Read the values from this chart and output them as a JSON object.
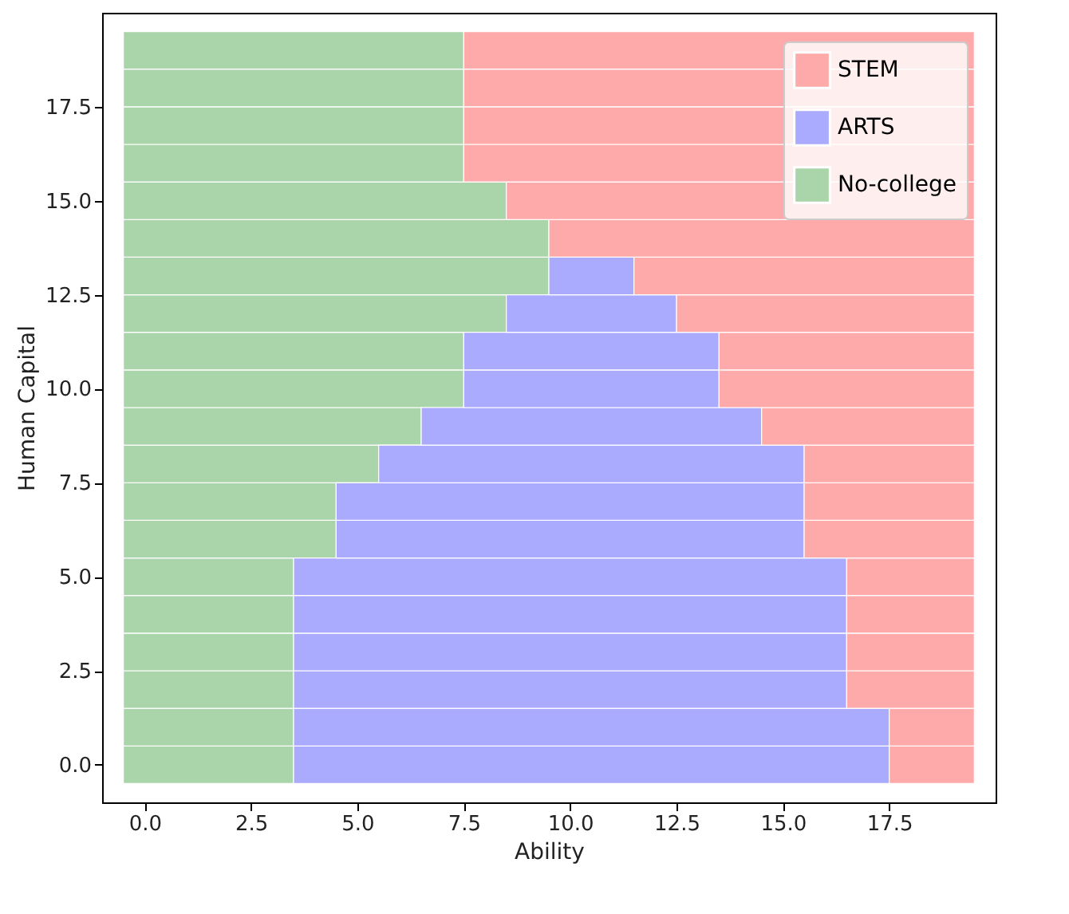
{
  "chart_data": {
    "type": "bar",
    "orientation": "horizontal",
    "xlabel": "Ability",
    "ylabel": "Human Capital",
    "x": [
      0,
      1,
      2,
      3,
      4,
      5,
      6,
      7,
      8,
      9,
      10,
      11,
      12,
      13,
      14,
      15,
      16,
      17,
      18,
      19
    ],
    "series": [
      {
        "name": "No-college",
        "color": "#aad4aa",
        "base": [
          -0.5,
          -0.5,
          -0.5,
          -0.5,
          -0.5,
          -0.5,
          -0.5,
          -0.5,
          -0.5,
          -0.5,
          -0.5,
          -0.5,
          -0.5,
          -0.5,
          -0.5,
          -0.5,
          -0.5,
          -0.5,
          -0.5,
          -0.5
        ],
        "values": [
          4,
          4,
          4,
          4,
          4,
          4,
          5,
          5,
          6,
          7,
          8,
          8,
          9,
          10,
          10,
          9,
          8,
          8,
          8,
          8
        ]
      },
      {
        "name": "ARTS",
        "color": "#aaaaff",
        "base": [
          3.5,
          3.5,
          3.5,
          3.5,
          3.5,
          3.5,
          4.5,
          4.5,
          5.5,
          6.5,
          7.5,
          7.5,
          8.5,
          9.5,
          null,
          null,
          null,
          null,
          null,
          null
        ],
        "values": [
          14,
          14,
          13,
          13,
          13,
          13,
          11,
          11,
          10,
          8,
          6,
          6,
          4,
          2,
          null,
          null,
          null,
          null,
          null,
          null
        ]
      },
      {
        "name": "STEM",
        "color": "#ffaaaa",
        "base": [
          17.5,
          17.5,
          16.5,
          16.5,
          16.5,
          16.5,
          15.5,
          15.5,
          15.5,
          14.5,
          13.5,
          13.5,
          12.5,
          11.5,
          9.5,
          8.5,
          7.5,
          7.5,
          7.5,
          7.5
        ],
        "values": [
          2,
          2,
          3,
          3,
          3,
          3,
          4,
          4,
          4,
          5,
          6,
          6,
          7,
          8,
          10,
          11,
          12,
          12,
          12,
          12
        ]
      }
    ],
    "xlim": [
      -1,
      20
    ],
    "xticks": [
      {
        "value": 0,
        "label": "0.0"
      },
      2.5,
      {
        "value": 5,
        "label": "5.0"
      },
      7.5,
      {
        "value": 10,
        "label": "10.0"
      },
      12.5,
      {
        "value": 15,
        "label": "15.0"
      },
      17.5
    ],
    "ylim": [
      -1,
      20
    ],
    "yticks": [
      {
        "value": 0,
        "label": "0.0"
      },
      2.5,
      {
        "value": 5,
        "label": "5.0"
      },
      7.5,
      {
        "value": 10,
        "label": "10.0"
      },
      12.5,
      {
        "value": 15,
        "label": "15.0"
      },
      17.5
    ],
    "legend": "top right",
    "grid": false
  }
}
